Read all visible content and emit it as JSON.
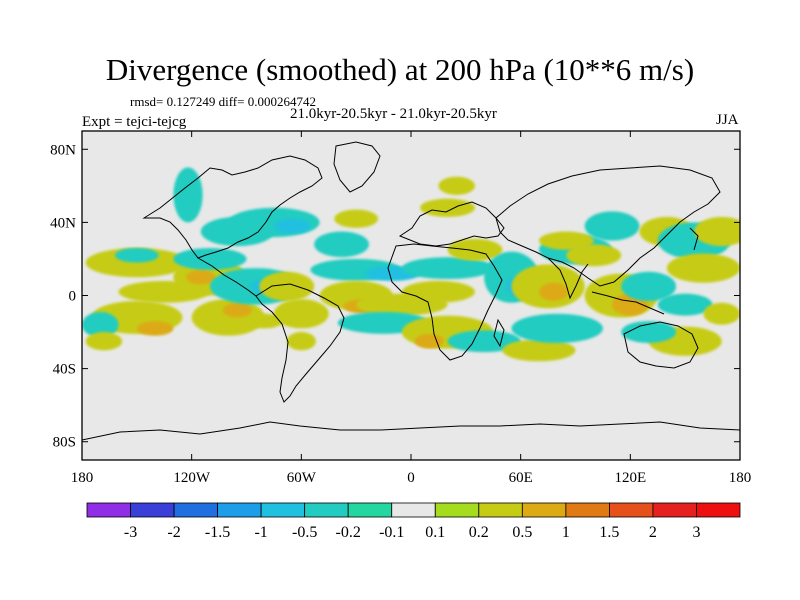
{
  "chart_data": {
    "type": "heatmap",
    "title": "Divergence (smoothed) at 200 hPa (10**6 m/s)",
    "stats_text": "rmsd= 0.127249 diff= 0.000264742",
    "period_text": "21.0kyr-20.5kyr - 21.0kyr-20.5kyr",
    "experiment_text": "Expt = tejci-tejcg",
    "season_text": "JJA",
    "x_axis": {
      "range": [
        -180,
        180
      ],
      "ticks": [
        -180,
        -120,
        -60,
        0,
        60,
        120,
        180
      ],
      "tick_labels": [
        "180",
        "120W",
        "60W",
        "0",
        "60E",
        "120E",
        "180"
      ]
    },
    "y_axis": {
      "range": [
        -90,
        90
      ],
      "ticks": [
        80,
        40,
        0,
        -40,
        -80
      ],
      "tick_labels": [
        "80N",
        "40N",
        "0",
        "40S",
        "80S"
      ]
    },
    "colorbar": {
      "levels": [
        "-3",
        "-2",
        "-1.5",
        "-1",
        "-0.5",
        "-0.2",
        "-0.1",
        "0.1",
        "0.2",
        "0.5",
        "1",
        "1.5",
        "2",
        "3"
      ],
      "colors": [
        "#8f2ee6",
        "#3a3fd9",
        "#1f6fe0",
        "#1e9ee8",
        "#20c0e0",
        "#22ccc0",
        "#24d6a0",
        "#e8e8e8",
        "#a6dc1e",
        "#c6cc14",
        "#dcaa14",
        "#e07a14",
        "#e6501a",
        "#e6201e",
        "#ee1010"
      ]
    },
    "background_color": "#e8e8e8",
    "anomalies": [
      {
        "lon": -150,
        "lat": 18,
        "rx": 28,
        "ry": 8,
        "value": 0.3
      },
      {
        "lon": -150,
        "lat": 22,
        "rx": 12,
        "ry": 4,
        "value": -0.3
      },
      {
        "lon": -135,
        "lat": 2,
        "rx": 25,
        "ry": 6,
        "value": 0.2
      },
      {
        "lon": -150,
        "lat": -12,
        "rx": 25,
        "ry": 9,
        "value": 0.4
      },
      {
        "lon": -140,
        "lat": -18,
        "rx": 10,
        "ry": 4,
        "value": 0.8
      },
      {
        "lon": -170,
        "lat": -16,
        "rx": 10,
        "ry": 7,
        "value": -0.3
      },
      {
        "lon": -168,
        "lat": -25,
        "rx": 10,
        "ry": 5,
        "value": 0.3
      },
      {
        "lon": -110,
        "lat": 10,
        "rx": 20,
        "ry": 10,
        "value": 0.3
      },
      {
        "lon": -115,
        "lat": 10,
        "rx": 8,
        "ry": 4,
        "value": 0.6
      },
      {
        "lon": -100,
        "lat": -12,
        "rx": 20,
        "ry": 10,
        "value": 0.3
      },
      {
        "lon": -95,
        "lat": -8,
        "rx": 8,
        "ry": 4,
        "value": 0.7
      },
      {
        "lon": -80,
        "lat": -14,
        "rx": 10,
        "ry": 4,
        "value": 0.3
      },
      {
        "lon": -60,
        "lat": -25,
        "rx": 8,
        "ry": 5,
        "value": 0.3
      },
      {
        "lon": -85,
        "lat": 5,
        "rx": 25,
        "ry": 10,
        "value": -0.3
      },
      {
        "lon": -78,
        "lat": 5,
        "rx": 10,
        "ry": 4,
        "value": -0.8
      },
      {
        "lon": -110,
        "lat": 20,
        "rx": 20,
        "ry": 6,
        "value": -0.3
      },
      {
        "lon": -122,
        "lat": 55,
        "rx": 8,
        "ry": 15,
        "value": -0.3
      },
      {
        "lon": -75,
        "lat": 40,
        "rx": 25,
        "ry": 8,
        "value": -0.3
      },
      {
        "lon": -65,
        "lat": 38,
        "rx": 10,
        "ry": 4,
        "value": -0.6
      },
      {
        "lon": -95,
        "lat": 35,
        "rx": 20,
        "ry": 8,
        "value": -0.3
      },
      {
        "lon": -68,
        "lat": 5,
        "rx": 15,
        "ry": 8,
        "value": 0.2
      },
      {
        "lon": -60,
        "lat": -10,
        "rx": 15,
        "ry": 8,
        "value": 0.3
      },
      {
        "lon": -38,
        "lat": 28,
        "rx": 15,
        "ry": 7,
        "value": -0.3
      },
      {
        "lon": -30,
        "lat": 42,
        "rx": 12,
        "ry": 5,
        "value": 0.3
      },
      {
        "lon": -30,
        "lat": 14,
        "rx": 25,
        "ry": 6,
        "value": -0.3
      },
      {
        "lon": -10,
        "lat": 12,
        "rx": 15,
        "ry": 4,
        "value": -0.7
      },
      {
        "lon": -30,
        "lat": 0,
        "rx": 20,
        "ry": 8,
        "value": 0.3
      },
      {
        "lon": -25,
        "lat": -6,
        "rx": 12,
        "ry": 4,
        "value": 0.7
      },
      {
        "lon": -5,
        "lat": -5,
        "rx": 25,
        "ry": 6,
        "value": 0.3
      },
      {
        "lon": -15,
        "lat": -15,
        "rx": 25,
        "ry": 6,
        "value": -0.3
      },
      {
        "lon": 20,
        "lat": -20,
        "rx": 25,
        "ry": 9,
        "value": 0.3
      },
      {
        "lon": 10,
        "lat": -25,
        "rx": 8,
        "ry": 4,
        "value": 0.7
      },
      {
        "lon": 40,
        "lat": -25,
        "rx": 20,
        "ry": 6,
        "value": -0.3
      },
      {
        "lon": 70,
        "lat": -30,
        "rx": 20,
        "ry": 6,
        "value": 0.2
      },
      {
        "lon": 20,
        "lat": 15,
        "rx": 25,
        "ry": 6,
        "value": -0.3
      },
      {
        "lon": 35,
        "lat": 25,
        "rx": 15,
        "ry": 6,
        "value": 0.2
      },
      {
        "lon": 15,
        "lat": 2,
        "rx": 20,
        "ry": 6,
        "value": 0.3
      },
      {
        "lon": 25,
        "lat": 60,
        "rx": 10,
        "ry": 5,
        "value": 0.2
      },
      {
        "lon": 20,
        "lat": 48,
        "rx": 15,
        "ry": 5,
        "value": 0.2
      },
      {
        "lon": 55,
        "lat": 10,
        "rx": 15,
        "ry": 14,
        "value": -0.3
      },
      {
        "lon": 60,
        "lat": 5,
        "rx": 8,
        "ry": 6,
        "value": -0.7
      },
      {
        "lon": 75,
        "lat": 5,
        "rx": 20,
        "ry": 12,
        "value": 0.4
      },
      {
        "lon": 78,
        "lat": 2,
        "rx": 8,
        "ry": 5,
        "value": 0.9
      },
      {
        "lon": 80,
        "lat": -18,
        "rx": 25,
        "ry": 8,
        "value": -0.3
      },
      {
        "lon": 90,
        "lat": 25,
        "rx": 20,
        "ry": 8,
        "value": -0.3
      },
      {
        "lon": 85,
        "lat": 30,
        "rx": 15,
        "ry": 5,
        "value": 0.3
      },
      {
        "lon": 110,
        "lat": 38,
        "rx": 15,
        "ry": 8,
        "value": -0.3
      },
      {
        "lon": 100,
        "lat": 22,
        "rx": 15,
        "ry": 6,
        "value": 0.2
      },
      {
        "lon": 115,
        "lat": 0,
        "rx": 20,
        "ry": 12,
        "value": 0.4
      },
      {
        "lon": 120,
        "lat": -5,
        "rx": 10,
        "ry": 6,
        "value": 0.9
      },
      {
        "lon": 130,
        "lat": 5,
        "rx": 15,
        "ry": 8,
        "value": -0.3
      },
      {
        "lon": 140,
        "lat": 35,
        "rx": 15,
        "ry": 8,
        "value": 0.3
      },
      {
        "lon": 155,
        "lat": 30,
        "rx": 20,
        "ry": 10,
        "value": -0.3
      },
      {
        "lon": 170,
        "lat": 35,
        "rx": 15,
        "ry": 8,
        "value": 0.3
      },
      {
        "lon": 160,
        "lat": 15,
        "rx": 20,
        "ry": 8,
        "value": 0.3
      },
      {
        "lon": 150,
        "lat": -5,
        "rx": 15,
        "ry": 6,
        "value": -0.3
      },
      {
        "lon": 170,
        "lat": -10,
        "rx": 10,
        "ry": 6,
        "value": 0.3
      },
      {
        "lon": 150,
        "lat": -25,
        "rx": 20,
        "ry": 8,
        "value": 0.3
      },
      {
        "lon": 130,
        "lat": -20,
        "rx": 15,
        "ry": 6,
        "value": -0.3
      }
    ]
  }
}
